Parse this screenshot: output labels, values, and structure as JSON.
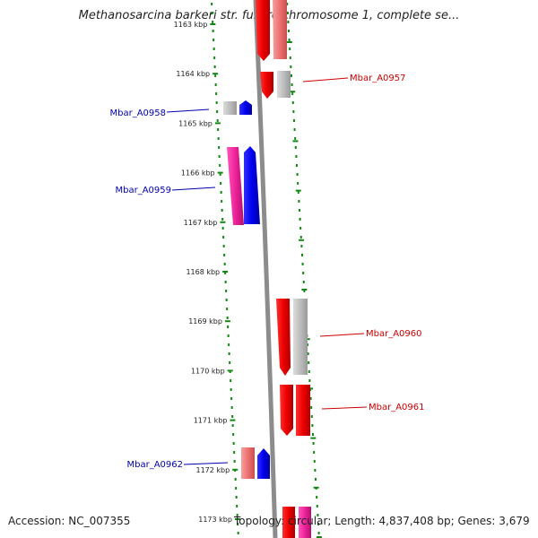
{
  "title": "Methanosarcina barkeri str. fusaro chromosome 1, complete se...",
  "footer": {
    "accession": "Accession: NC_007355",
    "info": "Topology: circular; Length: 4,837,408 bp; Genes: 3,679"
  },
  "ticks": [
    {
      "label": "1163 kbp",
      "partial": true
    },
    {
      "label": "1164 kbp"
    },
    {
      "label": "1165 kbp"
    },
    {
      "label": "1166 kbp"
    },
    {
      "label": "1167 kbp"
    },
    {
      "label": "1168 kbp"
    },
    {
      "label": "1169 kbp"
    },
    {
      "label": "1170 kbp"
    },
    {
      "label": "1171 kbp"
    },
    {
      "label": "1172 kbp"
    },
    {
      "label": "1173 kbp"
    }
  ],
  "gene_labels": [
    {
      "name": "Mbar_A0957",
      "side": "right",
      "color": "#cc0000"
    },
    {
      "name": "Mbar_A0958",
      "side": "left",
      "color": "#0000aa"
    },
    {
      "name": "Mbar_A0959",
      "side": "left",
      "color": "#0000aa"
    },
    {
      "name": "Mbar_A0960",
      "side": "right",
      "color": "#cc0000"
    },
    {
      "name": "Mbar_A0961",
      "side": "right",
      "color": "#cc0000"
    },
    {
      "name": "Mbar_A0962",
      "side": "left",
      "color": "#0000aa"
    }
  ],
  "colors": {
    "forward_gene": "#ee0000",
    "reverse_gene": "#0000ee",
    "pink_gene": "#ee2299",
    "light_red_gene": "#ee7070",
    "gray_gene": "#b8b8b8",
    "backbone": "#8c8c8c",
    "scale_dots": "#118811"
  }
}
